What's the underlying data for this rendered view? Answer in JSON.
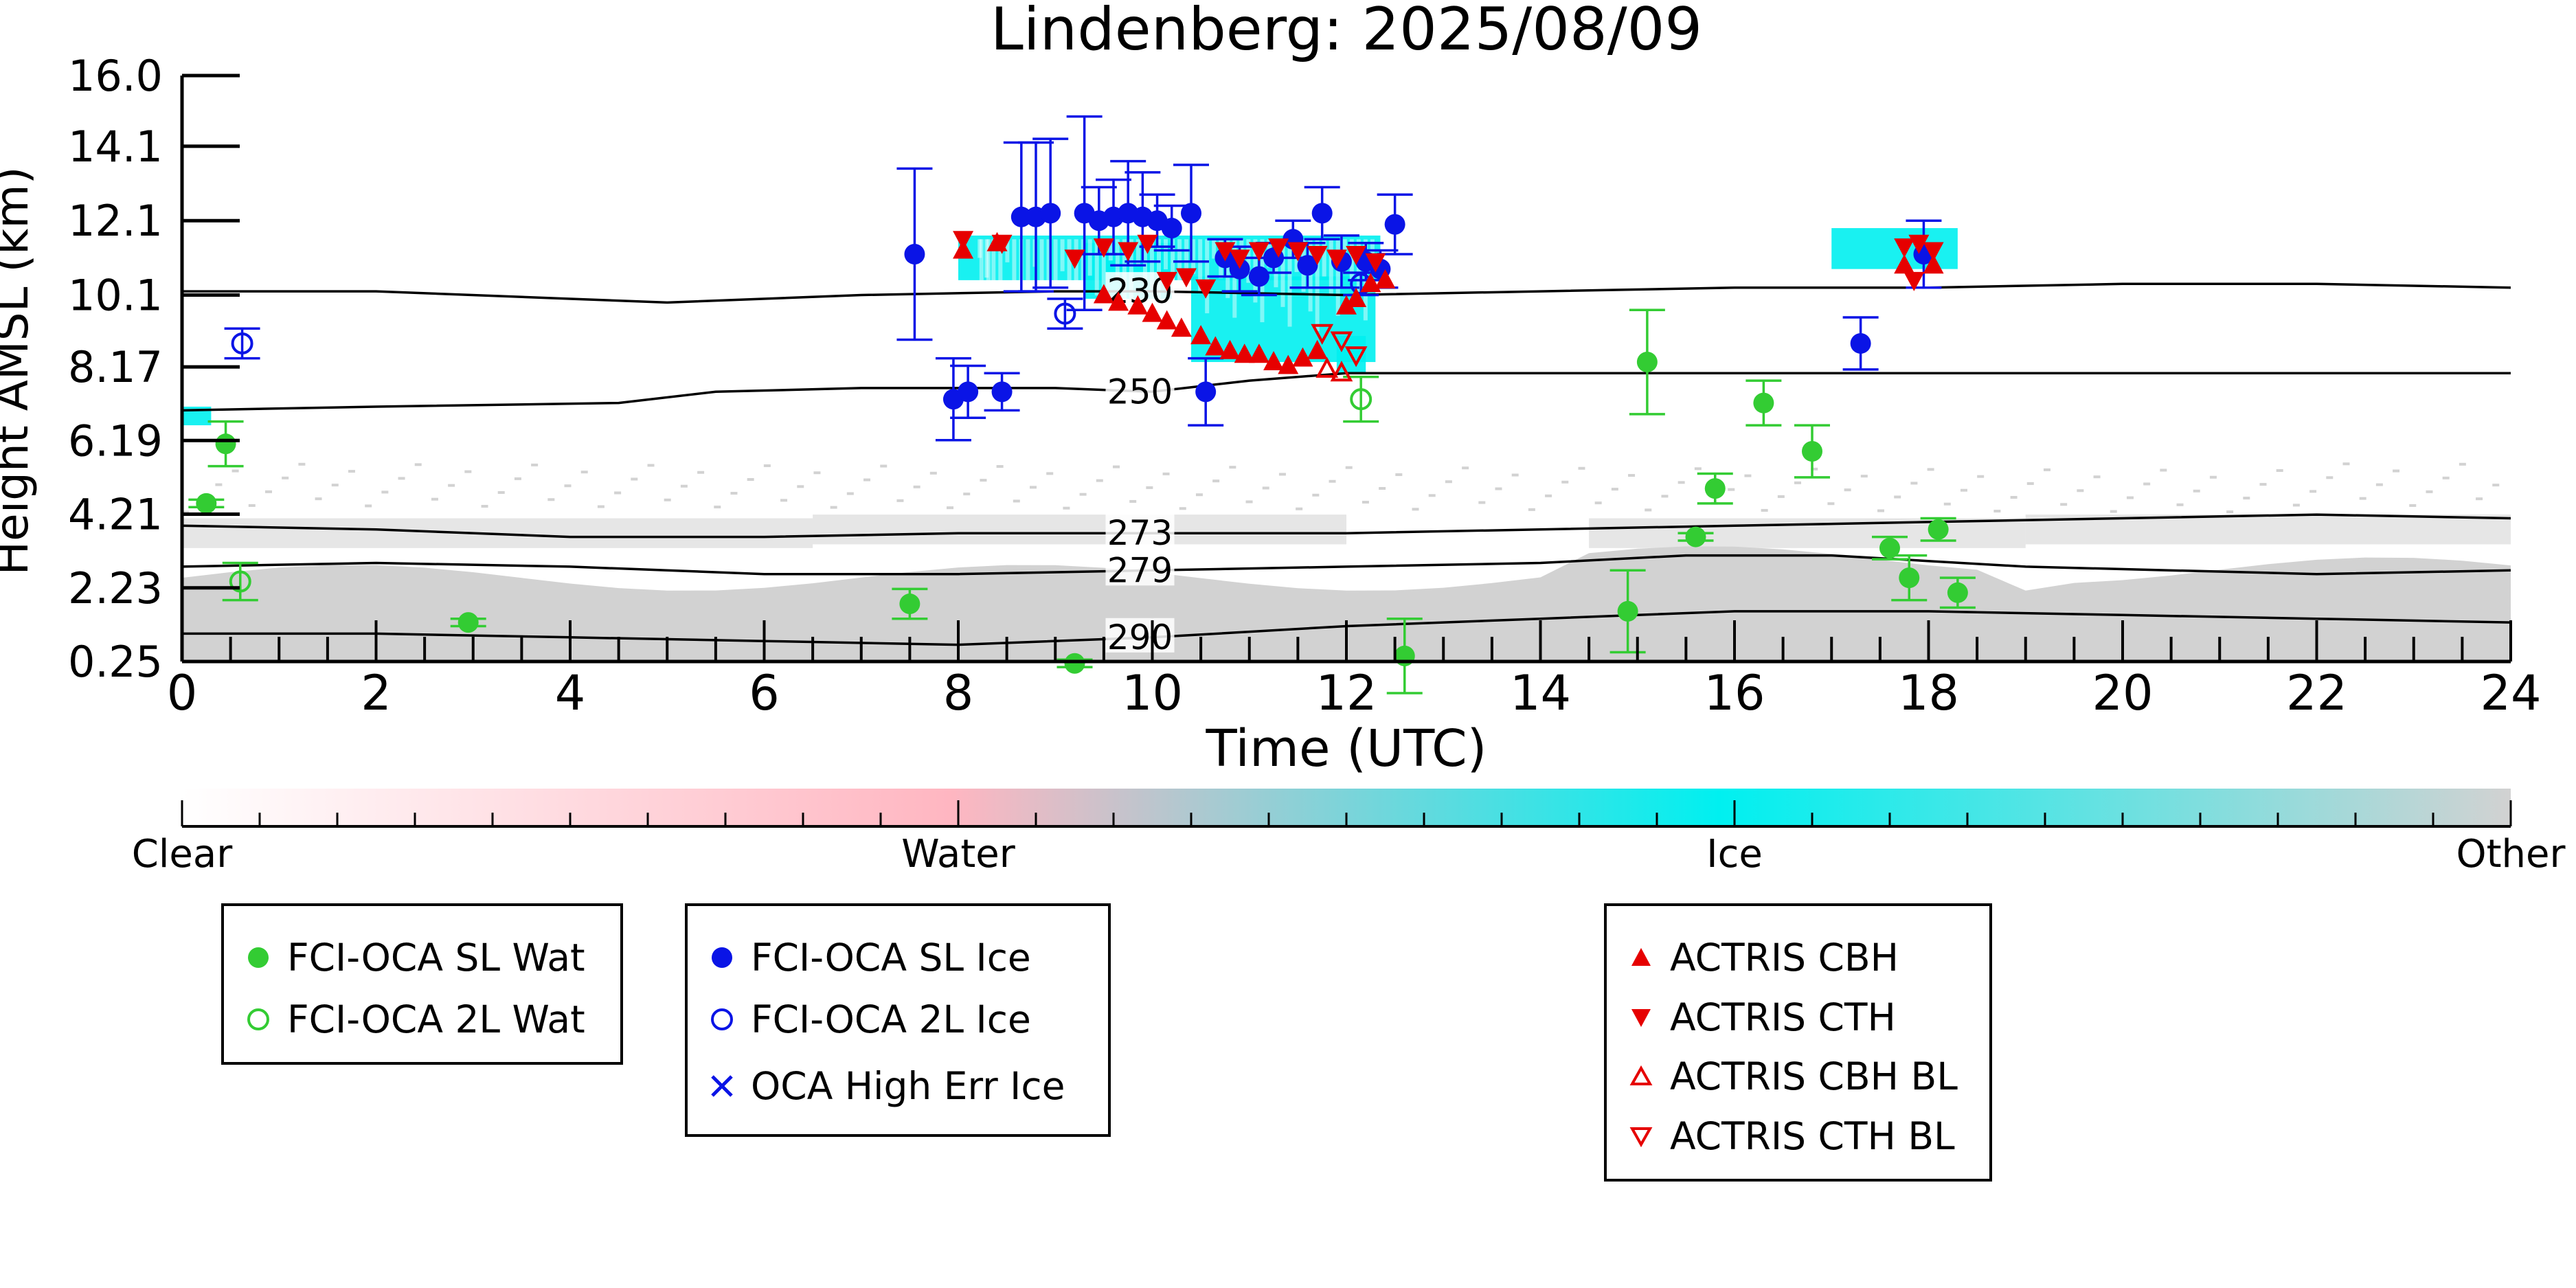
{
  "chart_data": {
    "type": "scatter",
    "title": "Lindenberg: 2025/08/09",
    "xlabel": "Time (UTC)",
    "ylabel": "Height AMSL (km)",
    "xlim": [
      0,
      24
    ],
    "ylim": [
      0.25,
      16.0
    ],
    "x_ticks": [
      "0",
      "2",
      "4",
      "6",
      "8",
      "10",
      "12",
      "14",
      "16",
      "18",
      "20",
      "22",
      "24"
    ],
    "y_ticks": [
      "0.25",
      "2.23",
      "4.21",
      "6.19",
      "8.17",
      "10.1",
      "12.1",
      "14.1",
      "16.0"
    ],
    "grid": false,
    "colors": {
      "water_solid": "#33cc33",
      "ice_solid": "#0a14e6",
      "actris": "#e60000",
      "ice_cloud": "#00f0f0",
      "other": "#d2d2d2",
      "water_class": "#ffb6c1"
    },
    "classification_colorbar": {
      "labels": [
        "Clear",
        "Water",
        "Ice",
        "Other"
      ]
    },
    "isotherms": [
      {
        "label": "230",
        "points": [
          [
            0,
            10.2
          ],
          [
            2,
            10.2
          ],
          [
            4,
            10.0
          ],
          [
            5,
            9.9
          ],
          [
            7,
            10.1
          ],
          [
            9,
            10.2
          ],
          [
            10,
            10.2
          ],
          [
            12,
            10.1
          ],
          [
            14,
            10.2
          ],
          [
            16,
            10.3
          ],
          [
            18,
            10.3
          ],
          [
            20,
            10.4
          ],
          [
            22,
            10.4
          ],
          [
            24,
            10.3
          ]
        ]
      },
      {
        "label": "250",
        "points": [
          [
            0,
            7.0
          ],
          [
            2,
            7.1
          ],
          [
            4.5,
            7.2
          ],
          [
            5.5,
            7.5
          ],
          [
            7,
            7.6
          ],
          [
            9,
            7.6
          ],
          [
            10,
            7.5
          ],
          [
            11,
            7.8
          ],
          [
            12,
            8.0
          ],
          [
            14,
            8.0
          ],
          [
            16,
            8.0
          ],
          [
            18,
            8.0
          ],
          [
            22,
            8.0
          ],
          [
            24,
            8.0
          ]
        ]
      },
      {
        "label": "273",
        "points": [
          [
            0,
            3.9
          ],
          [
            2,
            3.8
          ],
          [
            4,
            3.6
          ],
          [
            6,
            3.6
          ],
          [
            8,
            3.7
          ],
          [
            10,
            3.7
          ],
          [
            12,
            3.7
          ],
          [
            14,
            3.8
          ],
          [
            16,
            3.9
          ],
          [
            18,
            4.0
          ],
          [
            20,
            4.1
          ],
          [
            22,
            4.2
          ],
          [
            24,
            4.1
          ]
        ]
      },
      {
        "label": "279",
        "points": [
          [
            0,
            2.8
          ],
          [
            2,
            2.9
          ],
          [
            4,
            2.8
          ],
          [
            6,
            2.6
          ],
          [
            8,
            2.6
          ],
          [
            10,
            2.7
          ],
          [
            12,
            2.8
          ],
          [
            14,
            2.9
          ],
          [
            15.5,
            3.1
          ],
          [
            17,
            3.1
          ],
          [
            19,
            2.8
          ],
          [
            22,
            2.6
          ],
          [
            24,
            2.7
          ]
        ]
      },
      {
        "label": "290",
        "points": [
          [
            0,
            1.0
          ],
          [
            2,
            1.0
          ],
          [
            4,
            0.9
          ],
          [
            6,
            0.8
          ],
          [
            8,
            0.7
          ],
          [
            10,
            0.9
          ],
          [
            12,
            1.2
          ],
          [
            14,
            1.4
          ],
          [
            16,
            1.6
          ],
          [
            18,
            1.6
          ],
          [
            20,
            1.5
          ],
          [
            22,
            1.4
          ],
          [
            24,
            1.3
          ]
        ]
      }
    ],
    "series": [
      {
        "name": "FCI-OCA SL Wat",
        "marker": "filled-circle",
        "color": "#33cc33",
        "points": [
          [
            0.25,
            4.5,
            0.1
          ],
          [
            0.45,
            6.1,
            0.6
          ],
          [
            2.95,
            1.3,
            0.1
          ],
          [
            7.5,
            1.8,
            0.4
          ],
          [
            12.6,
            0.4,
            1.0
          ],
          [
            14.9,
            1.6,
            1.1
          ],
          [
            15.1,
            8.3,
            1.4
          ],
          [
            15.6,
            3.6,
            0.1
          ],
          [
            15.8,
            4.9,
            0.4
          ],
          [
            16.3,
            7.2,
            0.6
          ],
          [
            16.8,
            5.9,
            0.7
          ],
          [
            17.6,
            3.3,
            0.3
          ],
          [
            17.8,
            2.5,
            0.6
          ],
          [
            18.1,
            3.8,
            0.3
          ],
          [
            18.3,
            2.1,
            0.4
          ],
          [
            9.2,
            0.2,
            0.1
          ]
        ]
      },
      {
        "name": "FCI-OCA 2L Wat",
        "marker": "open-circle",
        "color": "#33cc33",
        "points": [
          [
            0.6,
            2.4,
            0.5
          ],
          [
            12.15,
            7.3,
            0.6
          ]
        ]
      },
      {
        "name": "FCI-OCA SL Ice",
        "marker": "filled-circle",
        "color": "#0a14e6",
        "points": [
          [
            7.55,
            11.2,
            2.3
          ],
          [
            7.95,
            7.3,
            1.1
          ],
          [
            8.1,
            7.5,
            0.7
          ],
          [
            8.45,
            7.5,
            0.5
          ],
          [
            8.65,
            12.2,
            2.0
          ],
          [
            8.8,
            12.2,
            2.0
          ],
          [
            8.95,
            12.3,
            2.0
          ],
          [
            9.3,
            12.3,
            2.6
          ],
          [
            9.45,
            12.1,
            0.9
          ],
          [
            9.6,
            12.2,
            1.0
          ],
          [
            9.75,
            12.3,
            1.4
          ],
          [
            9.9,
            12.2,
            1.2
          ],
          [
            10.05,
            12.1,
            0.7
          ],
          [
            10.2,
            11.9,
            0.6
          ],
          [
            10.4,
            12.3,
            1.3
          ],
          [
            10.55,
            7.5,
            0.9
          ],
          [
            10.75,
            11.1,
            0.5
          ],
          [
            10.9,
            10.8,
            0.6
          ],
          [
            11.1,
            10.6,
            0.5
          ],
          [
            11.25,
            11.1,
            0.4
          ],
          [
            11.45,
            11.6,
            0.5
          ],
          [
            11.6,
            10.9,
            0.6
          ],
          [
            11.75,
            12.3,
            0.7
          ],
          [
            11.95,
            11.0,
            0.7
          ],
          [
            12.2,
            11.0,
            0.5
          ],
          [
            12.35,
            10.8,
            0.5
          ],
          [
            12.5,
            12.0,
            0.8
          ],
          [
            17.3,
            8.8,
            0.7
          ],
          [
            17.95,
            11.2,
            0.9
          ]
        ]
      },
      {
        "name": "FCI-OCA 2L Ice",
        "marker": "open-circle",
        "color": "#0a14e6",
        "points": [
          [
            0.62,
            8.8,
            0.4
          ],
          [
            9.1,
            9.6,
            0.4
          ],
          [
            12.15,
            10.4,
            0.3
          ]
        ]
      },
      {
        "name": "OCA High Err Ice",
        "marker": "x",
        "color": "#0a14e6",
        "points": []
      },
      {
        "name": "ACTRIS CBH",
        "marker": "triangle-up",
        "color": "#e60000",
        "points": [
          [
            9.5,
            10.1
          ],
          [
            9.65,
            9.9
          ],
          [
            9.85,
            9.8
          ],
          [
            10.0,
            9.6
          ],
          [
            10.15,
            9.4
          ],
          [
            10.3,
            9.2
          ],
          [
            10.5,
            9.0
          ],
          [
            10.65,
            8.7
          ],
          [
            10.8,
            8.6
          ],
          [
            10.95,
            8.5
          ],
          [
            11.1,
            8.5
          ],
          [
            11.25,
            8.3
          ],
          [
            11.4,
            8.2
          ],
          [
            11.55,
            8.4
          ],
          [
            11.7,
            8.6
          ],
          [
            12.0,
            9.8
          ],
          [
            12.1,
            10.0
          ],
          [
            12.25,
            10.4
          ],
          [
            12.4,
            10.5
          ],
          [
            8.05,
            11.3
          ],
          [
            8.4,
            11.5
          ],
          [
            17.75,
            10.9
          ],
          [
            18.05,
            10.9
          ]
        ]
      },
      {
        "name": "ACTRIS CTH",
        "marker": "triangle-down",
        "color": "#e60000",
        "points": [
          [
            8.05,
            11.6
          ],
          [
            8.45,
            11.5
          ],
          [
            9.2,
            11.1
          ],
          [
            9.5,
            11.4
          ],
          [
            9.75,
            11.3
          ],
          [
            9.95,
            11.5
          ],
          [
            10.15,
            10.5
          ],
          [
            10.35,
            10.6
          ],
          [
            10.55,
            10.3
          ],
          [
            10.75,
            11.3
          ],
          [
            10.9,
            11.1
          ],
          [
            11.1,
            11.3
          ],
          [
            11.3,
            11.4
          ],
          [
            11.5,
            11.3
          ],
          [
            11.7,
            11.2
          ],
          [
            11.9,
            11.1
          ],
          [
            12.1,
            11.2
          ],
          [
            12.3,
            11.0
          ],
          [
            17.75,
            11.4
          ],
          [
            17.9,
            11.5
          ],
          [
            18.05,
            11.3
          ],
          [
            17.85,
            10.5
          ]
        ]
      },
      {
        "name": "ACTRIS CBH BL",
        "marker": "open-triangle-up",
        "color": "#e60000",
        "points": [
          [
            11.8,
            8.1
          ],
          [
            11.95,
            8.0
          ]
        ]
      },
      {
        "name": "ACTRIS CTH BL",
        "marker": "open-triangle-down",
        "color": "#e60000",
        "points": [
          [
            11.75,
            9.1
          ],
          [
            11.95,
            8.9
          ],
          [
            12.1,
            8.5
          ]
        ]
      }
    ]
  }
}
